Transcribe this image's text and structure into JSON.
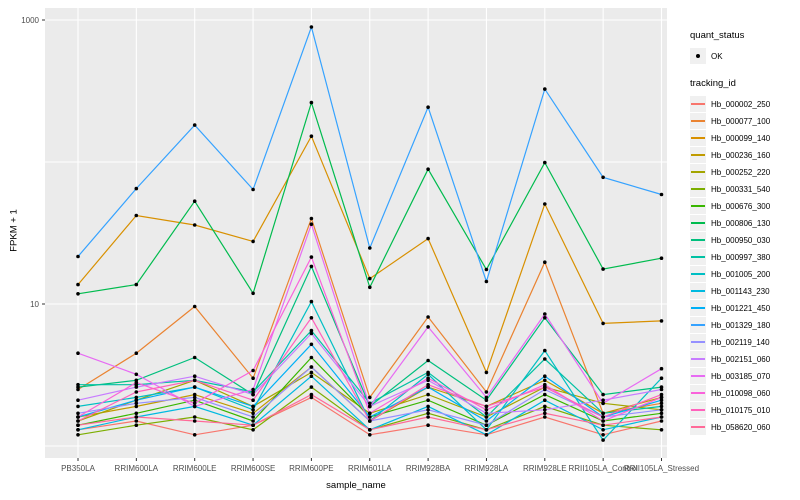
{
  "chart_data": {
    "type": "line",
    "title": "",
    "xlabel": "sample_name",
    "ylabel": "FPKM + 1",
    "y_scale": "log10",
    "y_axis": {
      "tick_values": [
        1000,
        10
      ],
      "tick_labels": [
        "1000",
        "10"
      ],
      "gridline_values": [
        1,
        10,
        100,
        1000
      ],
      "ylim": [
        0.82,
        1216
      ]
    },
    "panel_bg": "#EBEBEB",
    "grid_color": "#FFFFFF",
    "axis_text_color": "#4D4D4D",
    "marker": {
      "shape": "point",
      "color": "#000000"
    },
    "categories": [
      "PB350LA",
      "RRIM600LA",
      "RRIM600LE",
      "RRIM600SE",
      "RRIM600PE",
      "RRIM601LA",
      "RRIM928BA",
      "RRIM928LA",
      "RRIM928LE",
      "RRII105LA_Control",
      "RRII105LA_Stressed"
    ],
    "series": [
      {
        "name": "Hb_000002_250",
        "color": "#F8766D",
        "values": [
          1.3,
          1.5,
          1.2,
          1.4,
          2.2,
          1.2,
          1.4,
          1.2,
          1.6,
          1.2,
          1.5
        ]
      },
      {
        "name": "Hb_000077_100",
        "color": "#EA8331",
        "values": [
          2.5,
          4.5,
          9.6,
          3.0,
          40,
          2.2,
          8.1,
          2.4,
          19.7,
          1.7,
          2.0
        ]
      },
      {
        "name": "Hb_000099_140",
        "color": "#D89000",
        "values": [
          13.7,
          42,
          36,
          27.6,
          152,
          15.1,
          28.9,
          3.3,
          50.6,
          7.3,
          7.6
        ]
      },
      {
        "name": "Hb_000236_160",
        "color": "#C09B00",
        "values": [
          1.6,
          1.9,
          2.3,
          1.7,
          3.6,
          1.5,
          2.6,
          1.9,
          2.9,
          1.7,
          2.2
        ]
      },
      {
        "name": "Hb_000252_220",
        "color": "#A3A500",
        "values": [
          1.5,
          2.1,
          2.9,
          1.9,
          3.3,
          1.7,
          2.3,
          1.6,
          2.6,
          2.0,
          1.8
        ]
      },
      {
        "name": "Hb_000331_540",
        "color": "#7CAE00",
        "values": [
          1.2,
          1.4,
          1.6,
          1.3,
          2.6,
          1.3,
          1.7,
          1.3,
          1.9,
          1.4,
          1.3
        ]
      },
      {
        "name": "Hb_000676_300",
        "color": "#39B600",
        "values": [
          1.4,
          1.7,
          2.1,
          1.5,
          4.2,
          1.6,
          2.1,
          1.4,
          2.3,
          1.5,
          1.7
        ]
      },
      {
        "name": "Hb_000806_130",
        "color": "#00BB4E",
        "values": [
          11.8,
          13.7,
          53,
          11.9,
          262,
          13.1,
          89,
          17.5,
          99,
          17.6,
          21
        ]
      },
      {
        "name": "Hb_000950_030",
        "color": "#00BF7D",
        "values": [
          2.6,
          2.9,
          4.2,
          2.3,
          18.4,
          1.9,
          4.0,
          2.1,
          8.0,
          2.3,
          2.6
        ]
      },
      {
        "name": "Hb_000997_380",
        "color": "#00C1A3",
        "values": [
          2.7,
          2.7,
          2.9,
          2.4,
          6.5,
          2.0,
          3.3,
          1.6,
          4.1,
          1.7,
          1.9
        ]
      },
      {
        "name": "Hb_001005_200",
        "color": "#00BFC4",
        "values": [
          1.9,
          2.2,
          2.6,
          1.8,
          10.4,
          1.5,
          3.2,
          1.3,
          4.7,
          1.1,
          3.0
        ]
      },
      {
        "name": "Hb_001143_230",
        "color": "#00BAE0",
        "values": [
          1.3,
          1.6,
          1.9,
          1.4,
          3.1,
          1.3,
          1.9,
          1.2,
          2.1,
          1.3,
          1.6
        ]
      },
      {
        "name": "Hb_001221_450",
        "color": "#00B0F6",
        "values": [
          1.6,
          2.1,
          2.6,
          1.9,
          5.2,
          1.6,
          2.6,
          1.5,
          3.1,
          1.6,
          2.1
        ]
      },
      {
        "name": "Hb_001329_180",
        "color": "#35A2FF",
        "values": [
          21.6,
          65,
          182,
          64,
          893,
          24.8,
          243,
          14.4,
          326,
          78,
          59
        ]
      },
      {
        "name": "Hb_002119_140",
        "color": "#9590FF",
        "values": [
          1.7,
          2.0,
          2.2,
          1.6,
          3.6,
          1.5,
          1.8,
          1.4,
          2.5,
          1.6,
          1.8
        ]
      },
      {
        "name": "Hb_002151_060",
        "color": "#C77CFF",
        "values": [
          2.1,
          2.6,
          3.1,
          2.3,
          6.2,
          1.9,
          2.9,
          1.7,
          1.8,
          2.1,
          2.5
        ]
      },
      {
        "name": "Hb_003185_070",
        "color": "#E76BF3",
        "values": [
          4.5,
          3.2,
          1.9,
          2.5,
          36.5,
          1.9,
          6.9,
          2.2,
          8.5,
          2.0,
          3.5
        ]
      },
      {
        "name": "Hb_010098_060",
        "color": "#FA62DB",
        "values": [
          1.6,
          2.8,
          2.0,
          3.4,
          21.4,
          1.7,
          3.0,
          1.8,
          2.7,
          1.5,
          2.2
        ]
      },
      {
        "name": "Hb_010175_010",
        "color": "#FF62BC",
        "values": [
          1.5,
          2.4,
          2.9,
          2.1,
          8.0,
          1.5,
          2.7,
          1.9,
          2.6,
          1.6,
          2.3
        ]
      },
      {
        "name": "Hb_058620_060",
        "color": "#FF6A98",
        "values": [
          1.4,
          1.6,
          1.5,
          1.4,
          2.3,
          1.3,
          1.6,
          1.3,
          1.7,
          1.4,
          1.6
        ]
      }
    ],
    "legend": {
      "position": "right",
      "quant_title": "quant_status",
      "quant_item": {
        "label": "OK",
        "marker": "point"
      },
      "series_title": "tracking_id"
    }
  }
}
